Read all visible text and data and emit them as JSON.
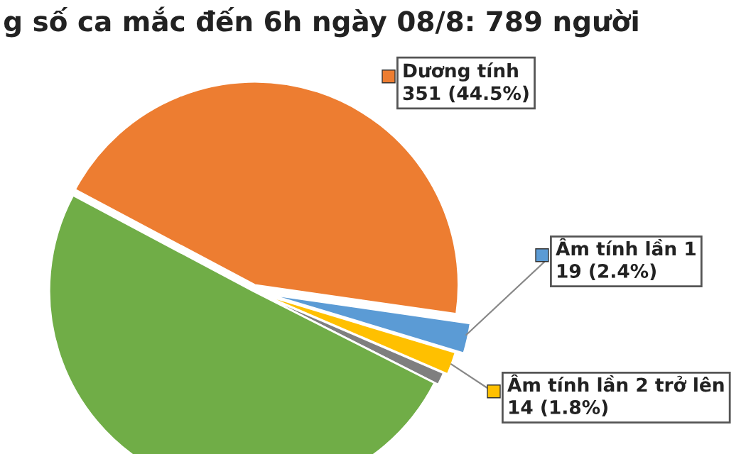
{
  "chart_data": {
    "type": "pie",
    "title": "g số ca mắc đến 6h ngày 08/8: 789 người",
    "categories": [
      "Dương tính",
      "Âm tính lần 1",
      "Âm tính lần 2 trở lên",
      null,
      null
    ],
    "values": [
      44.5,
      2.4,
      1.8,
      1.0,
      50.3
    ],
    "value_labels": [
      "351 (44.5%)",
      "19 (2.4%)",
      "14 (1.8%)",
      null,
      null
    ],
    "colors": [
      "#ed7d31",
      "#5b9bd5",
      "#ffc000",
      "#7f7f7f",
      "#70ad47"
    ],
    "legend": "right"
  }
}
